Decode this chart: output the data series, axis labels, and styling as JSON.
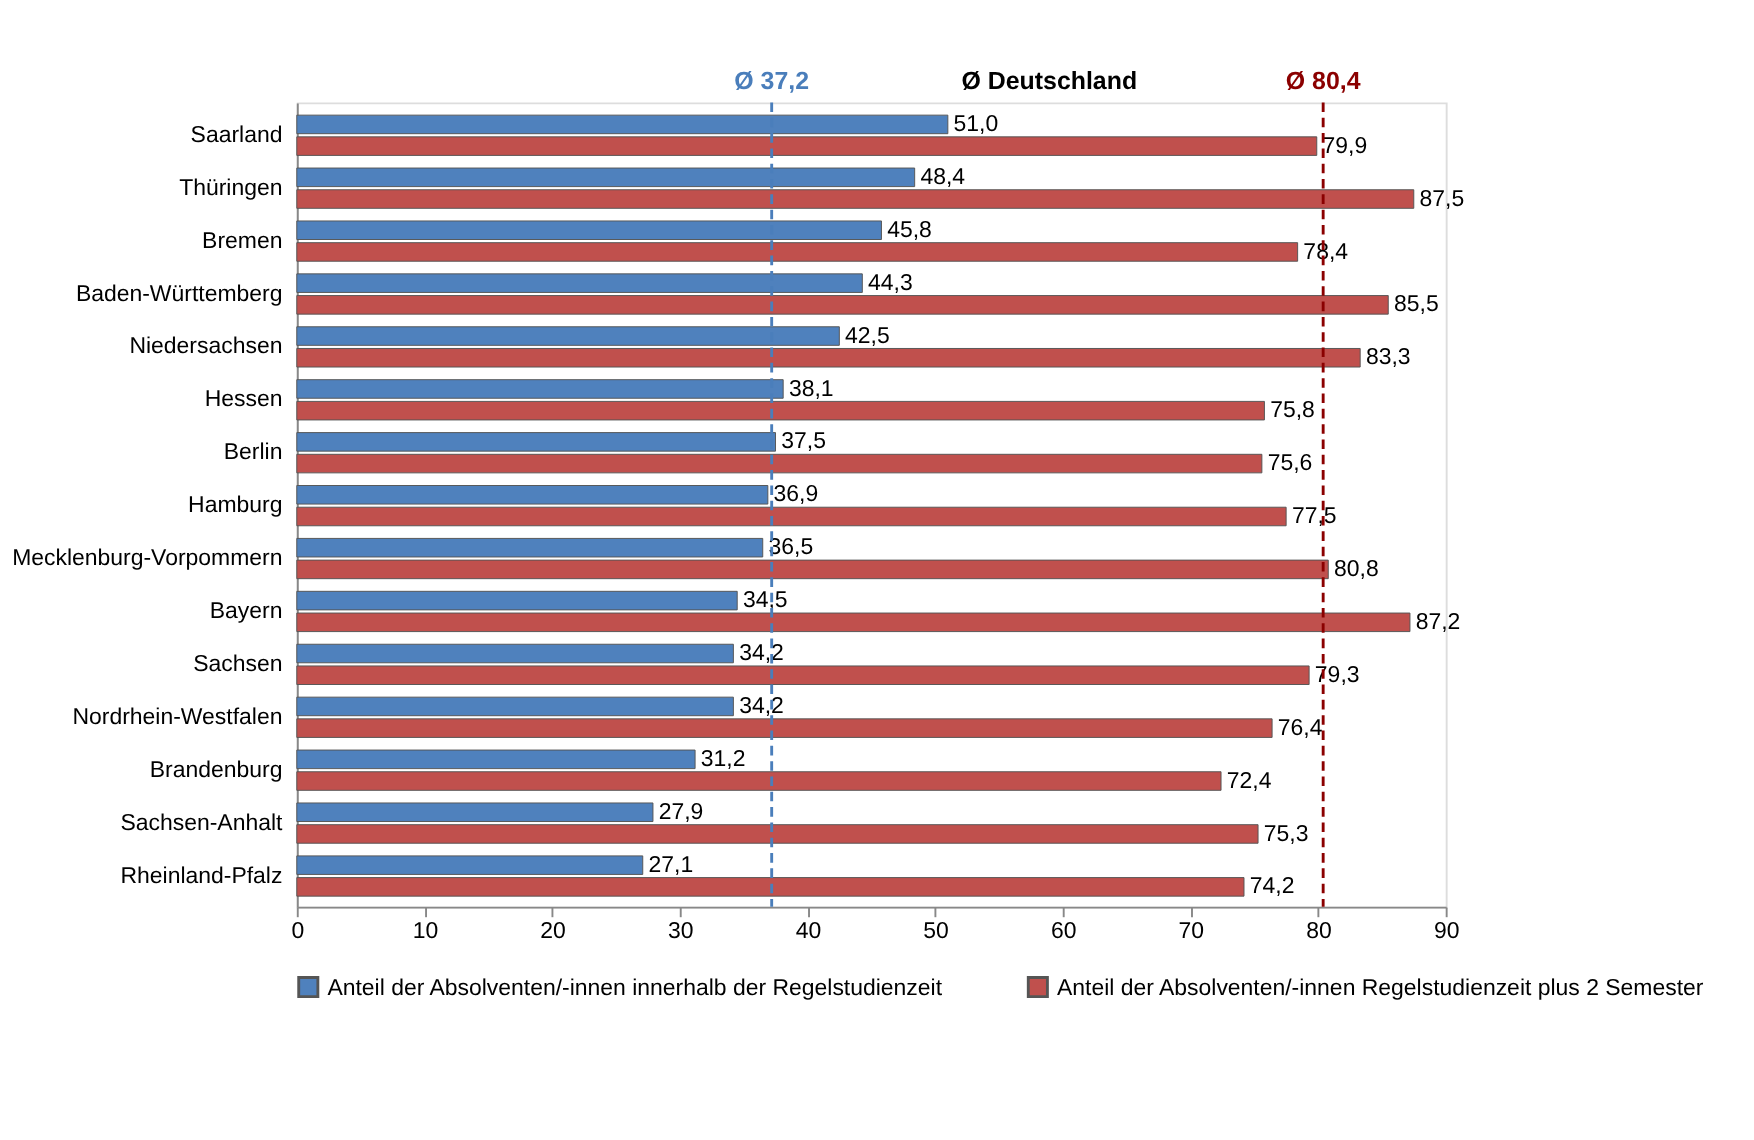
{
  "chart_data": {
    "type": "bar",
    "orientation": "horizontal",
    "categories": [
      "Saarland",
      "Thüringen",
      "Bremen",
      "Baden-Württemberg",
      "Niedersachsen",
      "Hessen",
      "Berlin",
      "Hamburg",
      "Mecklenburg-Vorpommern",
      "Bayern",
      "Sachsen",
      "Nordrhein-Westfalen",
      "Brandenburg",
      "Sachsen-Anhalt",
      "Rheinland-Pfalz"
    ],
    "series": [
      {
        "name": "Anteil der Absolventen/-innen innerhalb der Regelstudienzeit",
        "color": "#4f81bd",
        "values": [
          51.0,
          48.4,
          45.8,
          44.3,
          42.5,
          38.1,
          37.5,
          36.9,
          36.5,
          34.5,
          34.2,
          34.2,
          31.2,
          27.9,
          27.1
        ],
        "value_labels": [
          "51,0",
          "48,4",
          "45,8",
          "44,3",
          "42,5",
          "38,1",
          "37,5",
          "36,9",
          "36,5",
          "34,5",
          "34,2",
          "34,2",
          "31,2",
          "27,9",
          "27,1"
        ]
      },
      {
        "name": "Anteil der Absolventen/-innen Regelstudienzeit plus 2 Semester",
        "color": "#c0504d",
        "values": [
          79.9,
          87.5,
          78.4,
          85.5,
          83.3,
          75.8,
          75.6,
          77.5,
          80.8,
          87.2,
          79.3,
          76.4,
          72.4,
          75.3,
          74.2
        ],
        "value_labels": [
          "79,9",
          "87,5",
          "78,4",
          "85,5",
          "83,3",
          "75,8",
          "75,6",
          "77,5",
          "80,8",
          "87,2",
          "79,3",
          "76,4",
          "72,4",
          "75,3",
          "74,2"
        ]
      }
    ],
    "xlim": [
      0,
      90
    ],
    "xticks": [
      0,
      10,
      20,
      30,
      40,
      50,
      60,
      70,
      80,
      90
    ],
    "ref_lines": [
      {
        "axis": "x",
        "value": 37.2,
        "label": "Ø 37,2",
        "color": "#4a7ebb",
        "line_style": "dashed"
      },
      {
        "axis": "x",
        "value": 80.4,
        "label": "Ø 80,4",
        "color": "#8b0000",
        "line_style": "dashed"
      }
    ],
    "annotations": [
      "Ø Deutschland"
    ],
    "grid": false,
    "legend": "bottom"
  }
}
